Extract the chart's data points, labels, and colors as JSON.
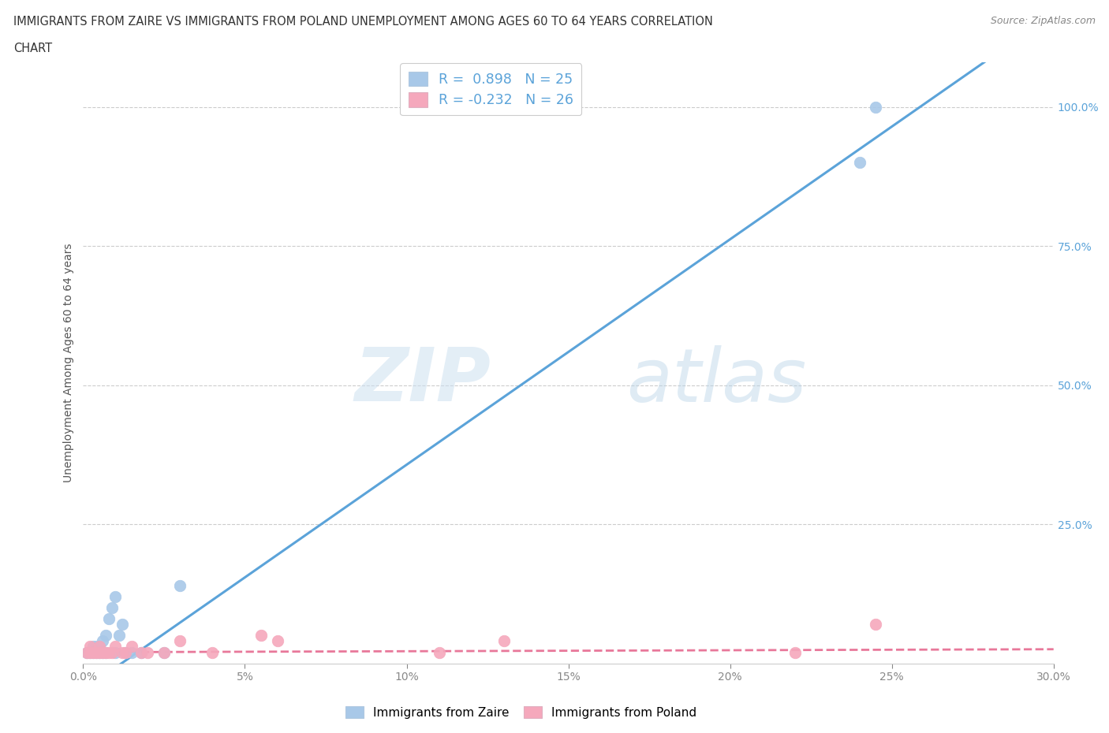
{
  "title_line1": "IMMIGRANTS FROM ZAIRE VS IMMIGRANTS FROM POLAND UNEMPLOYMENT AMONG AGES 60 TO 64 YEARS CORRELATION",
  "title_line2": "CHART",
  "source": "Source: ZipAtlas.com",
  "ylabel": "Unemployment Among Ages 60 to 64 years",
  "y_tick_labels": [
    "100.0%",
    "75.0%",
    "50.0%",
    "25.0%"
  ],
  "y_tick_values": [
    1.0,
    0.75,
    0.5,
    0.25
  ],
  "x_tick_values": [
    0.0,
    0.05,
    0.1,
    0.15,
    0.2,
    0.25,
    0.3
  ],
  "x_tick_labels": [
    "0.0%",
    "5%",
    "10%",
    "15%",
    "20%",
    "25%",
    "30.0%"
  ],
  "legend1_label": "R =  0.898   N = 25",
  "legend2_label": "R = -0.232   N = 26",
  "legend_bottom_label1": "Immigrants from Zaire",
  "legend_bottom_label2": "Immigrants from Poland",
  "zaire_color": "#a8c8e8",
  "poland_color": "#f5a8bc",
  "zaire_line_color": "#5ba3d9",
  "poland_line_color": "#e8789a",
  "background_color": "#ffffff",
  "watermark_1": "ZIP",
  "watermark_2": "atlas",
  "zaire_x": [
    0.001,
    0.002,
    0.003,
    0.003,
    0.004,
    0.004,
    0.005,
    0.005,
    0.006,
    0.006,
    0.007,
    0.007,
    0.008,
    0.009,
    0.01,
    0.01,
    0.011,
    0.012,
    0.013,
    0.015,
    0.018,
    0.025,
    0.03,
    0.24,
    0.245
  ],
  "zaire_y": [
    0.02,
    0.02,
    0.02,
    0.03,
    0.02,
    0.03,
    0.02,
    0.03,
    0.02,
    0.04,
    0.02,
    0.05,
    0.08,
    0.1,
    0.02,
    0.12,
    0.05,
    0.07,
    0.02,
    0.02,
    0.02,
    0.02,
    0.14,
    0.9,
    1.0
  ],
  "poland_x": [
    0.001,
    0.002,
    0.002,
    0.003,
    0.004,
    0.005,
    0.005,
    0.006,
    0.007,
    0.008,
    0.009,
    0.01,
    0.012,
    0.013,
    0.015,
    0.018,
    0.02,
    0.025,
    0.03,
    0.04,
    0.055,
    0.06,
    0.11,
    0.13,
    0.22,
    0.245
  ],
  "poland_y": [
    0.02,
    0.02,
    0.03,
    0.02,
    0.02,
    0.02,
    0.03,
    0.02,
    0.02,
    0.02,
    0.02,
    0.03,
    0.02,
    0.02,
    0.03,
    0.02,
    0.02,
    0.02,
    0.04,
    0.02,
    0.05,
    0.04,
    0.02,
    0.04,
    0.02,
    0.07
  ],
  "zaire_slope": 4.05,
  "zaire_intercept": -0.048,
  "poland_slope": 0.018,
  "poland_intercept": 0.02
}
